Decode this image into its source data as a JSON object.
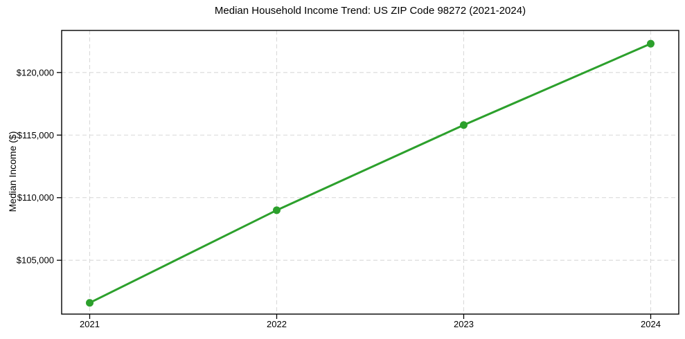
{
  "chart_data": {
    "type": "line",
    "title": "Median Household Income Trend: US ZIP Code 98272 (2021-2024)",
    "xlabel": "",
    "ylabel": "Median Income ($)",
    "x": [
      2021,
      2022,
      2023,
      2024
    ],
    "x_tick_labels": [
      "2021",
      "2022",
      "2023",
      "2024"
    ],
    "series": [
      {
        "name": "Median household income",
        "values": [
          101600,
          109000,
          115800,
          122300
        ]
      }
    ],
    "y_ticks": [
      105000,
      110000,
      115000,
      120000
    ],
    "y_tick_labels": [
      "$105,000",
      "$110,000",
      "$115,000",
      "$120,000"
    ],
    "xlim": [
      2020.85,
      2024.15
    ],
    "ylim": [
      100700,
      123360
    ],
    "grid": true,
    "grid_style": "dashed",
    "legend": false,
    "colors": {
      "line": "#2ca02c",
      "marker": "#2ca02c",
      "grid": "#d9d9d9",
      "spine": "#000000",
      "text": "#000000",
      "background": "#ffffff"
    }
  }
}
